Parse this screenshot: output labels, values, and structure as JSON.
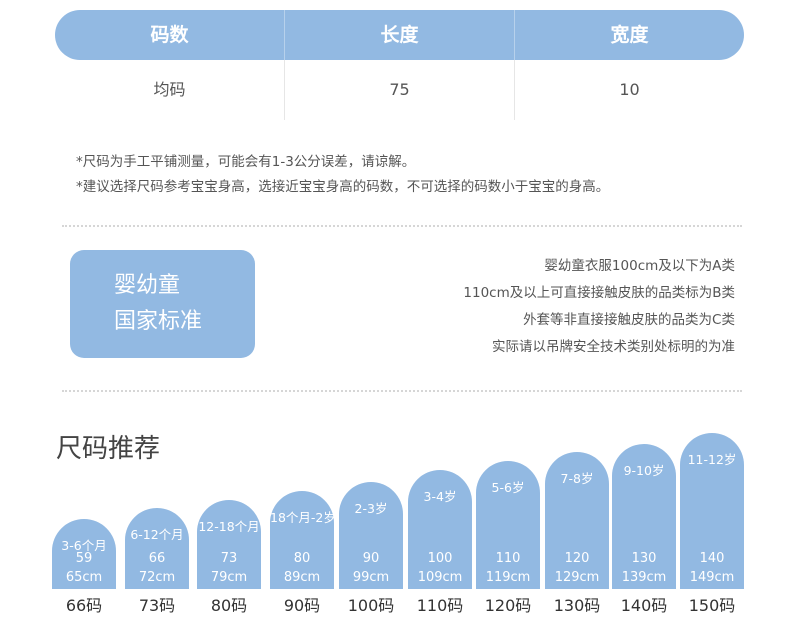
{
  "table": {
    "headers": [
      "码数",
      "长度",
      "宽度"
    ],
    "row": [
      "均码",
      "75",
      "10"
    ]
  },
  "notes": [
    "*尺码为手工平铺测量，可能会有1-3公分误差，请谅解。",
    "*建议选择尺码参考宝宝身高，选接近宝宝身高的码数，不可选择的码数小于宝宝的身高。"
  ],
  "standard": {
    "badge_line1": "婴幼童",
    "badge_line2": "国家标准",
    "lines": [
      "婴幼童衣服100cm及以下为A类",
      "110cm及以上可直接接触皮肤的品类标为B类",
      "外套等非直接接触皮肤的品类为C类",
      "实际请以吊牌安全技术类别处标明的为准"
    ]
  },
  "recommend": {
    "title": "尺码推荐",
    "bars": [
      {
        "age": "3-6个月",
        "weight": "59",
        "height": "65cm",
        "size": "66码"
      },
      {
        "age": "6-12个月",
        "weight": "66",
        "height": "72cm",
        "size": "73码"
      },
      {
        "age": "12-18个月",
        "weight": "73",
        "height": "79cm",
        "size": "80码"
      },
      {
        "age": "18个月-2岁",
        "weight": "80",
        "height": "89cm",
        "size": "90码"
      },
      {
        "age": "2-3岁",
        "weight": "90",
        "height": "99cm",
        "size": "100码"
      },
      {
        "age": "3-4岁",
        "weight": "100",
        "height": "109cm",
        "size": "110码"
      },
      {
        "age": "5-6岁",
        "weight": "110",
        "height": "119cm",
        "size": "120码"
      },
      {
        "age": "7-8岁",
        "weight": "120",
        "height": "129cm",
        "size": "130码"
      },
      {
        "age": "9-10岁",
        "weight": "130",
        "height": "139cm",
        "size": "140码"
      },
      {
        "age": "11-12岁",
        "weight": "140",
        "height": "149cm",
        "size": "150码"
      }
    ]
  },
  "colors": {
    "accent": "#92b9e2"
  }
}
